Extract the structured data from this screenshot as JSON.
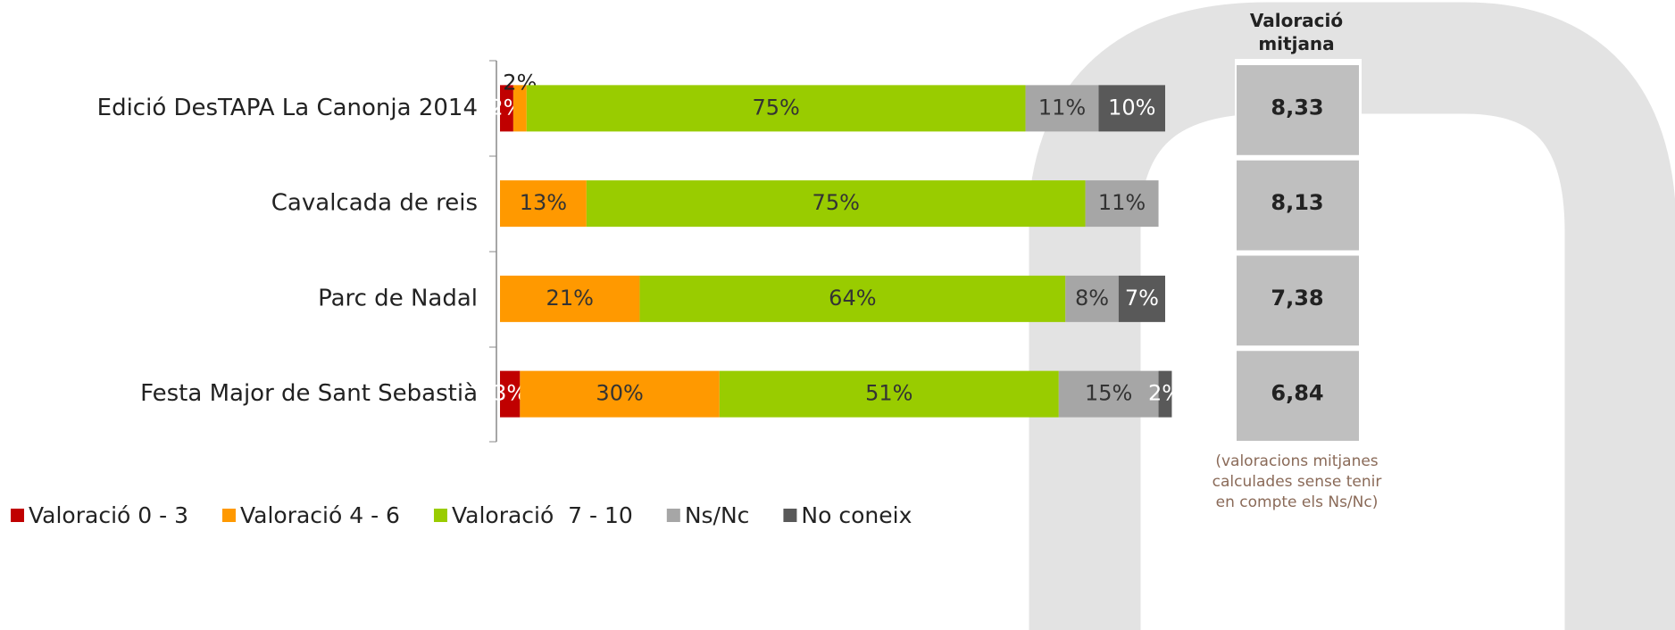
{
  "chart_data": {
    "type": "bar",
    "orientation": "horizontal",
    "stacked": true,
    "categories": [
      "Edició DesTAPA La Canonja 2014",
      "Cavalcada de reis",
      "Parc de Nadal",
      "Festa Major de Sant Sebastià"
    ],
    "xlim": [
      0,
      100
    ],
    "legend": "bottom",
    "series": [
      {
        "name": "Valoració 0 - 3",
        "color": "#c00000",
        "label_color": "#ffffff",
        "values": [
          2,
          null,
          null,
          3
        ],
        "value_labels": [
          "2%",
          null,
          null,
          "3%"
        ]
      },
      {
        "name": "Valoració 4 - 6",
        "color": "#ff9900",
        "label_color": "#333333",
        "values": [
          2,
          13,
          21,
          30
        ],
        "value_labels": [
          "2%",
          "13%",
          "21%",
          "30%"
        ]
      },
      {
        "name": "Valoració  7 - 10",
        "color": "#99cc00",
        "label_color": "#333333",
        "values": [
          75,
          75,
          64,
          51
        ],
        "value_labels": [
          "75%",
          "75%",
          "64%",
          "51%"
        ]
      },
      {
        "name": "Ns/Nc",
        "color": "#a6a6a6",
        "label_color": "#333333",
        "values": [
          11,
          11,
          8,
          15
        ],
        "value_labels": [
          "11%",
          "11%",
          "8%",
          "15%"
        ]
      },
      {
        "name": "No coneix",
        "color": "#595959",
        "label_color": "#ffffff",
        "values": [
          10,
          null,
          7,
          2
        ],
        "value_labels": [
          "10%",
          null,
          "7%",
          "2%"
        ]
      }
    ],
    "average_title": "Valoració mitjana",
    "average_labels": [
      "8,33",
      "8,13",
      "7,38",
      "6,84"
    ],
    "average_note": "(valoracions mitjanes calculades sense tenir en compte els Ns/Nc)"
  }
}
